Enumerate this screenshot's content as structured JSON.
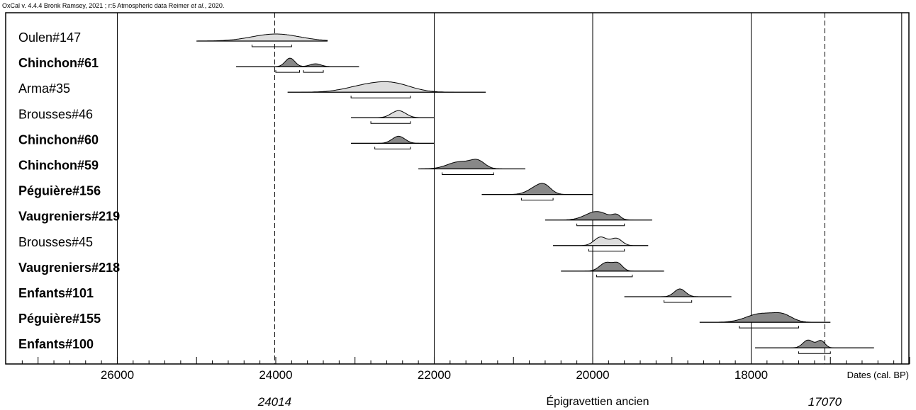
{
  "credit": {
    "prefix": "OxCal v. 4.4.4 Bronk Ramsey, 2021 ; r:5 Atmospheric data Reimer ",
    "etal": "et al.",
    "suffix": ", 2020."
  },
  "chart_data": {
    "type": "range-plot",
    "xlabel": "Dates (cal. BP)",
    "xlim": [
      27400,
      16000
    ],
    "x_reversed": true,
    "ticks": [
      26000,
      24000,
      22000,
      20000,
      18000
    ],
    "tick_labels": [
      "26000",
      "24000",
      "22000",
      "20000",
      "18000"
    ],
    "vertical_lines": [
      26000,
      22000,
      20000,
      18000,
      16100
    ],
    "boundaries": [
      {
        "label": "24014",
        "value": 24014
      },
      {
        "label": "17070",
        "value": 17070
      }
    ],
    "phase_label": "Épigravettien ancien",
    "series": [
      {
        "name": "Oulen#147",
        "bold": false,
        "shade": "#dddddd",
        "range": [
          25000,
          23350
        ],
        "hpd": [
          [
            24300,
            23800
          ]
        ],
        "peaks": [
          {
            "x": 24000,
            "w": 300,
            "h": 10
          }
        ]
      },
      {
        "name": "Chinchon#61",
        "bold": true,
        "shade": "#888888",
        "range": [
          24500,
          22950
        ],
        "hpd": [
          [
            24000,
            23700
          ],
          [
            23650,
            23400
          ]
        ],
        "peaks": [
          {
            "x": 23820,
            "w": 60,
            "h": 12
          },
          {
            "x": 23500,
            "w": 70,
            "h": 4
          }
        ]
      },
      {
        "name": "Arma#35",
        "bold": false,
        "shade": "#dddddd",
        "range": [
          23850,
          21350
        ],
        "hpd": [
          [
            23050,
            22300
          ]
        ],
        "peaks": [
          {
            "x": 22850,
            "w": 260,
            "h": 9
          },
          {
            "x": 22500,
            "w": 230,
            "h": 10
          }
        ]
      },
      {
        "name": "Brousses#46",
        "bold": false,
        "shade": "#dddddd",
        "range": [
          23050,
          22000
        ],
        "hpd": [
          [
            22800,
            22300
          ]
        ],
        "peaks": [
          {
            "x": 22450,
            "w": 90,
            "h": 10
          }
        ]
      },
      {
        "name": "Chinchon#60",
        "bold": true,
        "shade": "#888888",
        "range": [
          23050,
          22000
        ],
        "hpd": [
          [
            22750,
            22300
          ]
        ],
        "peaks": [
          {
            "x": 22450,
            "w": 80,
            "h": 10
          }
        ]
      },
      {
        "name": "Chinchon#59",
        "bold": true,
        "shade": "#888888",
        "range": [
          22200,
          20850
        ],
        "hpd": [
          [
            21900,
            21250
          ]
        ],
        "peaks": [
          {
            "x": 21680,
            "w": 150,
            "h": 10
          },
          {
            "x": 21450,
            "w": 90,
            "h": 10
          }
        ]
      },
      {
        "name": "Péguière#156",
        "bold": true,
        "shade": "#888888",
        "range": [
          21400,
          20000
        ],
        "hpd": [
          [
            20900,
            20500
          ]
        ],
        "peaks": [
          {
            "x": 20700,
            "w": 110,
            "h": 10
          },
          {
            "x": 20600,
            "w": 80,
            "h": 8
          }
        ]
      },
      {
        "name": "Vaugreniers#219",
        "bold": true,
        "shade": "#888888",
        "range": [
          20600,
          19250
        ],
        "hpd": [
          [
            20200,
            19600
          ]
        ],
        "peaks": [
          {
            "x": 19950,
            "w": 140,
            "h": 12
          },
          {
            "x": 19700,
            "w": 50,
            "h": 6
          }
        ]
      },
      {
        "name": "Brousses#45",
        "bold": false,
        "shade": "#dddddd",
        "range": [
          20500,
          19300
        ],
        "hpd": [
          [
            20050,
            19600
          ]
        ],
        "peaks": [
          {
            "x": 19900,
            "w": 80,
            "h": 12
          },
          {
            "x": 19700,
            "w": 70,
            "h": 10
          }
        ]
      },
      {
        "name": "Vaugreniers#218",
        "bold": true,
        "shade": "#888888",
        "range": [
          20400,
          19100
        ],
        "hpd": [
          [
            19950,
            19500
          ]
        ],
        "peaks": [
          {
            "x": 19830,
            "w": 80,
            "h": 12
          },
          {
            "x": 19680,
            "w": 60,
            "h": 10
          }
        ]
      },
      {
        "name": "Enfants#101",
        "bold": true,
        "shade": "#888888",
        "range": [
          19600,
          18250
        ],
        "hpd": [
          [
            19100,
            18750
          ]
        ],
        "peaks": [
          {
            "x": 18900,
            "w": 70,
            "h": 11
          }
        ]
      },
      {
        "name": "Péguière#155",
        "bold": true,
        "shade": "#888888",
        "range": [
          18650,
          17000
        ],
        "hpd": [
          [
            18150,
            17400
          ]
        ],
        "peaks": [
          {
            "x": 17880,
            "w": 180,
            "h": 12
          },
          {
            "x": 17600,
            "w": 120,
            "h": 9
          }
        ]
      },
      {
        "name": "Enfants#100",
        "bold": true,
        "shade": "#888888",
        "range": [
          17950,
          16450
        ],
        "hpd": [
          [
            17400,
            17000
          ]
        ],
        "peaks": [
          {
            "x": 17280,
            "w": 65,
            "h": 11
          },
          {
            "x": 17120,
            "w": 50,
            "h": 10
          }
        ]
      }
    ]
  }
}
